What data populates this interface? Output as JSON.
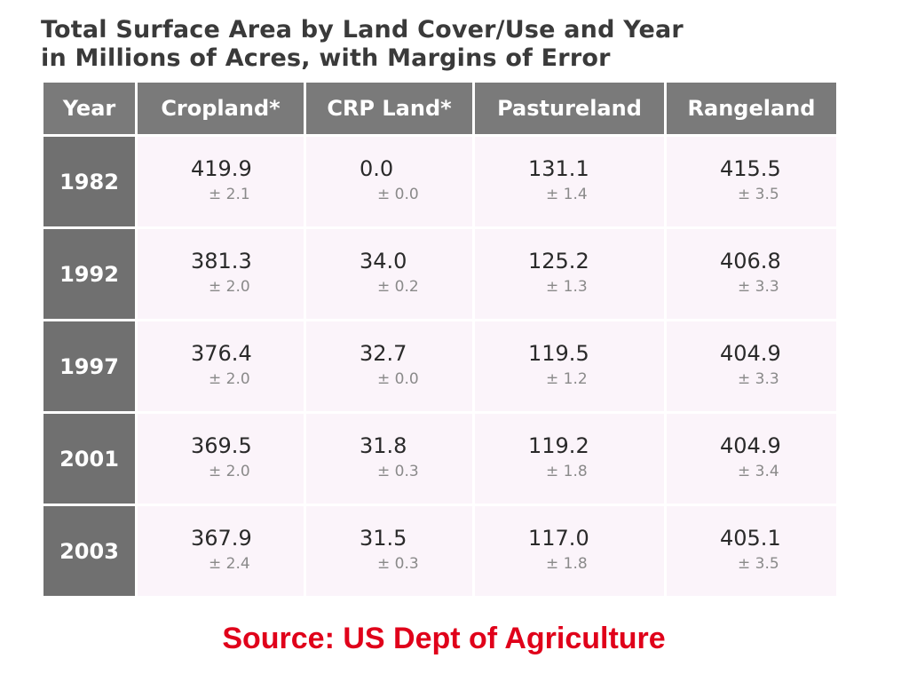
{
  "chart_data": {
    "type": "table",
    "title_line1": "Total Surface Area by Land Cover/Use and Year",
    "title_line2": "in Millions of Acres, with Margins of Error",
    "columns": [
      "Year",
      "Cropland*",
      "CRP Land*",
      "Pastureland",
      "Rangeland"
    ],
    "rows": [
      {
        "year": "1982",
        "values": [
          {
            "value": "419.9",
            "error": "± 2.1"
          },
          {
            "value": "0.0",
            "error": "± 0.0"
          },
          {
            "value": "131.1",
            "error": "± 1.4"
          },
          {
            "value": "415.5",
            "error": "± 3.5"
          }
        ]
      },
      {
        "year": "1992",
        "values": [
          {
            "value": "381.3",
            "error": "± 2.0"
          },
          {
            "value": "34.0",
            "error": "± 0.2"
          },
          {
            "value": "125.2",
            "error": "± 1.3"
          },
          {
            "value": "406.8",
            "error": "± 3.3"
          }
        ]
      },
      {
        "year": "1997",
        "values": [
          {
            "value": "376.4",
            "error": "± 2.0"
          },
          {
            "value": "32.7",
            "error": "± 0.0"
          },
          {
            "value": "119.5",
            "error": "± 1.2"
          },
          {
            "value": "404.9",
            "error": "± 3.3"
          }
        ]
      },
      {
        "year": "2001",
        "values": [
          {
            "value": "369.5",
            "error": "± 2.0"
          },
          {
            "value": "31.8",
            "error": "± 0.3"
          },
          {
            "value": "119.2",
            "error": "± 1.8"
          },
          {
            "value": "404.9",
            "error": "± 3.4"
          }
        ]
      },
      {
        "year": "2003",
        "values": [
          {
            "value": "367.9",
            "error": "± 2.4"
          },
          {
            "value": "31.5",
            "error": "± 0.3"
          },
          {
            "value": "117.0",
            "error": "± 1.8"
          },
          {
            "value": "405.1",
            "error": "± 3.5"
          }
        ]
      }
    ],
    "colors": {
      "header_bg": "#7a7a7a",
      "year_bg": "#707070",
      "cell_bg": "#fbf4fa"
    }
  },
  "source": {
    "text": "Source: US Dept of Agriculture",
    "color": "#e0001a"
  }
}
